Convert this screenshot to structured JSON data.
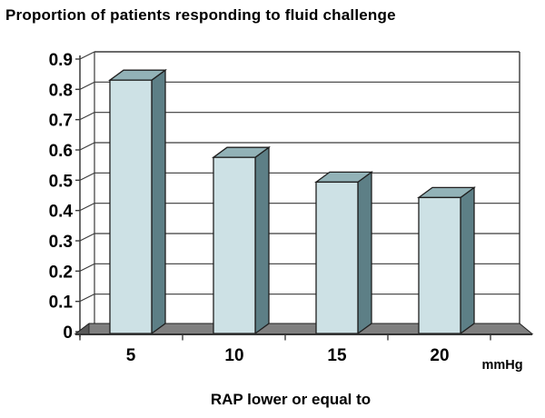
{
  "chart_data": {
    "type": "bar",
    "style": "3d-column",
    "title": "Proportion of patients responding to fluid challenge",
    "xlabel": "RAP lower or equal to",
    "x_unit": "mmHg",
    "ylabel": "",
    "categories": [
      "5",
      "10",
      "15",
      "20"
    ],
    "values": [
      0.82,
      0.57,
      0.49,
      0.44
    ],
    "ylim": [
      0,
      0.9
    ],
    "ytick_step": 0.1,
    "yticks_top_to_bottom": [
      "0.9",
      "0.8",
      "0.7",
      "0.6",
      "0.5",
      "0.4",
      "0.3",
      "0.2",
      "0.1",
      "0"
    ],
    "grid": true,
    "legend": "none",
    "colors": {
      "bar_front": "#cde1e5",
      "bar_top": "#92b2b7",
      "bar_side": "#5d7f86",
      "outline": "#1f1f1f",
      "floor": "#7f7f7f",
      "floor_dark": "#595959",
      "wall": "#ffffff",
      "grid_line": "#3a3a3a",
      "background": "#ffffff",
      "text": "#000000"
    }
  }
}
